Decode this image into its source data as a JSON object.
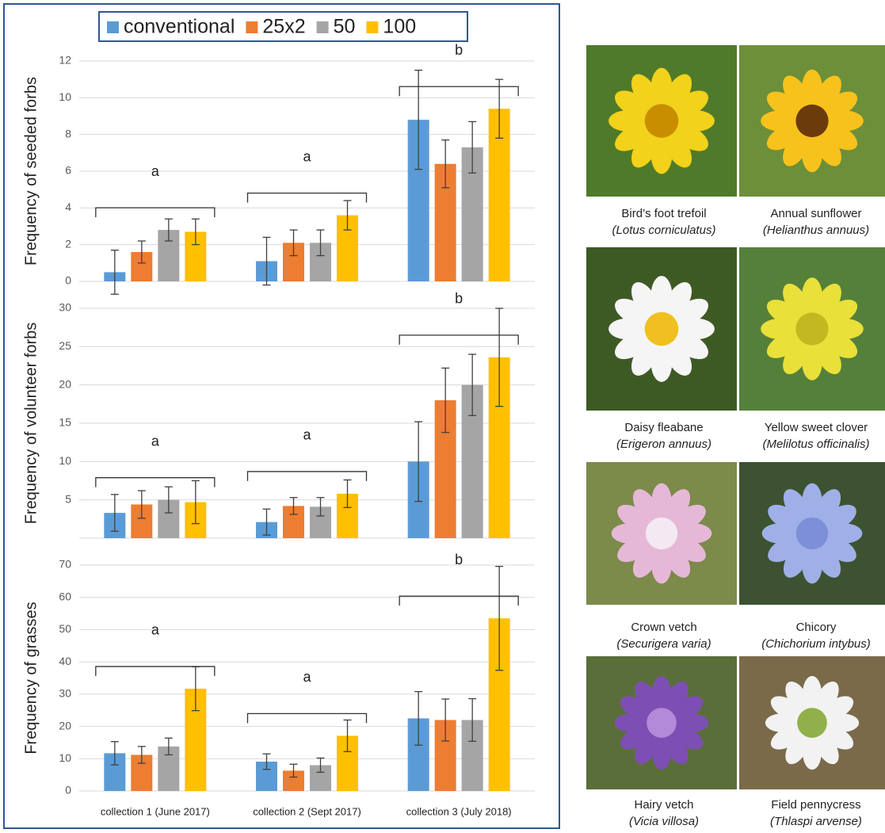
{
  "chart_data": [
    {
      "type": "bar",
      "ylabel": "Frequency of seeded forbs",
      "ylim": [
        0,
        12
      ],
      "yticks": [
        0,
        2,
        4,
        6,
        8,
        10,
        12
      ],
      "grid": true,
      "annotations": [
        "a",
        "a",
        "b"
      ],
      "series": [
        {
          "name": "conventional",
          "color": "#5b9bd5",
          "values": [
            0.5,
            1.1,
            8.8
          ],
          "errors": [
            1.2,
            1.3,
            2.7
          ]
        },
        {
          "name": "25x2",
          "color": "#ed7d31",
          "values": [
            1.6,
            2.1,
            6.4
          ],
          "errors": [
            0.6,
            0.7,
            1.3
          ]
        },
        {
          "name": "50",
          "color": "#a5a5a5",
          "values": [
            2.8,
            2.1,
            7.3
          ],
          "errors": [
            0.6,
            0.7,
            1.4
          ]
        },
        {
          "name": "100",
          "color": "#ffc000",
          "values": [
            2.7,
            3.6,
            9.4
          ],
          "errors": [
            0.7,
            0.8,
            1.6
          ]
        }
      ]
    },
    {
      "type": "bar",
      "ylabel": "Frequency of volunteer forbs",
      "ylim": [
        0,
        30
      ],
      "yticks": [
        5,
        10,
        15,
        20,
        25,
        30
      ],
      "grid": true,
      "annotations": [
        "a",
        "a",
        "b"
      ],
      "series": [
        {
          "values": [
            3.3,
            2.1,
            10.0
          ],
          "errors": [
            2.4,
            1.7,
            5.2
          ]
        },
        {
          "values": [
            4.4,
            4.2,
            18.0
          ],
          "errors": [
            1.8,
            1.1,
            4.2
          ]
        },
        {
          "values": [
            5.0,
            4.1,
            20.0
          ],
          "errors": [
            1.7,
            1.2,
            4.0
          ]
        },
        {
          "values": [
            4.7,
            5.8,
            23.6
          ],
          "errors": [
            2.8,
            1.8,
            6.4
          ]
        }
      ]
    },
    {
      "type": "bar",
      "ylabel": "Frequency of  grasses",
      "categories": [
        "collection 1 (June 2017)",
        "collection 2 (Sept 2017)",
        "collection 3 (July 2018)"
      ],
      "ylim": [
        0,
        70
      ],
      "yticks": [
        0,
        10,
        20,
        30,
        40,
        50,
        60,
        70
      ],
      "grid": true,
      "annotations": [
        "a",
        "a",
        "b"
      ],
      "series": [
        {
          "values": [
            11.7,
            9.1,
            22.5
          ],
          "errors": [
            3.6,
            2.4,
            8.3
          ]
        },
        {
          "values": [
            11.2,
            6.3,
            22.0
          ],
          "errors": [
            2.6,
            2.0,
            6.5
          ]
        },
        {
          "values": [
            13.8,
            8.0,
            22.0
          ],
          "errors": [
            2.6,
            2.2,
            6.6
          ]
        },
        {
          "values": [
            31.7,
            17.1,
            53.5
          ],
          "errors": [
            6.8,
            4.9,
            16.1
          ]
        }
      ]
    }
  ],
  "photos": [
    {
      "name": "Bird’s foot trefoil",
      "latin": "(Lotus corniculatus)"
    },
    {
      "name": "Annual sunflower",
      "latin": "(Helianthus annuus)"
    },
    {
      "name": "Daisy fleabane",
      "latin": "(Erigeron annuus)"
    },
    {
      "name": "Yellow sweet clover",
      "latin": "(Melilotus officinalis)"
    },
    {
      "name": "Crown vetch",
      "latin": "(Securigera varia)"
    },
    {
      "name": "Chicory",
      "latin": "(Chichorium intybus)"
    },
    {
      "name": "Hairy vetch",
      "latin": "(Vicia villosa)"
    },
    {
      "name": "Field pennycress",
      "latin": "(Thlaspi arvense)"
    }
  ]
}
